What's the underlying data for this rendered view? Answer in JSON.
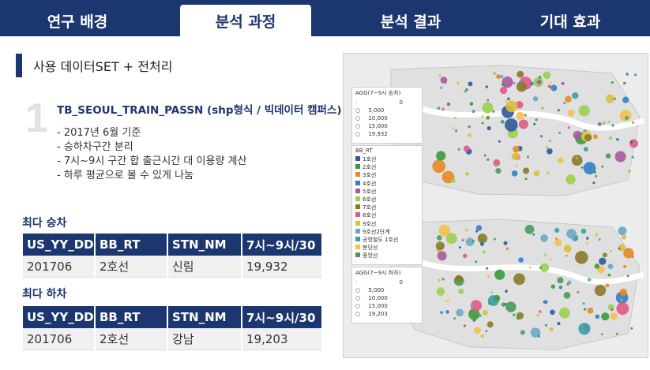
{
  "nav": {
    "tabs": [
      "연구 배경",
      "분석 과정",
      "분석 결과",
      "기대 효과"
    ],
    "active_index": 1
  },
  "section": {
    "title": "사용 데이터SET + 전처리"
  },
  "item": {
    "number": "1",
    "title": "TB_SEOUL_TRAIN_PASSN (shp형식 / 빅데이터 캠퍼스)",
    "bullets": [
      "- 2017년 6월 기준",
      "- 승하차구간 분리",
      "- 7시~9시 구간 합 출근시간 대 이용량 계산",
      "- 하루 평균으로 볼 수 있게 나눔"
    ]
  },
  "boarding": {
    "label": "최다 승차",
    "headers": [
      "US_YY_DD",
      "BB_RT",
      "STN_NM",
      "7시~9시/30"
    ],
    "row": [
      "201706",
      "2호선",
      "신림",
      "19,932"
    ]
  },
  "alighting": {
    "label": "최다 하차",
    "headers": [
      "US_YY_DD",
      "BB_RT",
      "STN_NM",
      "7시~9시/30"
    ],
    "row": [
      "201706",
      "2호선",
      "강남",
      "19,203"
    ]
  },
  "map": {
    "agg_top_title": "AGG(7~9시 승차)",
    "agg_top_values": [
      "0",
      "5,000",
      "10,000",
      "15,000",
      "19,932"
    ],
    "route_title": "BB_RT",
    "routes": [
      {
        "name": "1호선",
        "color": "#2b5a9e"
      },
      {
        "name": "2호선",
        "color": "#3a9b3a"
      },
      {
        "name": "3호선",
        "color": "#e88a22"
      },
      {
        "name": "4호선",
        "color": "#2f7fc8"
      },
      {
        "name": "5호선",
        "color": "#a65aa0"
      },
      {
        "name": "6호선",
        "color": "#9bd04e"
      },
      {
        "name": "7호선",
        "color": "#8a7a2a"
      },
      {
        "name": "8호선",
        "color": "#e05a8a"
      },
      {
        "name": "9호선",
        "color": "#d8c03a"
      },
      {
        "name": "9호선2단계",
        "color": "#6aa8c8"
      },
      {
        "name": "공항철도 1호선",
        "color": "#3aa0a8"
      },
      {
        "name": "분당선",
        "color": "#f2c14a"
      },
      {
        "name": "중앙선",
        "color": "#4a9a5a"
      }
    ],
    "agg_bottom_title": "AGG(7~9시 하차)",
    "agg_bottom_values": [
      "0",
      "5,000",
      "10,000",
      "15,000",
      "19,203"
    ]
  }
}
